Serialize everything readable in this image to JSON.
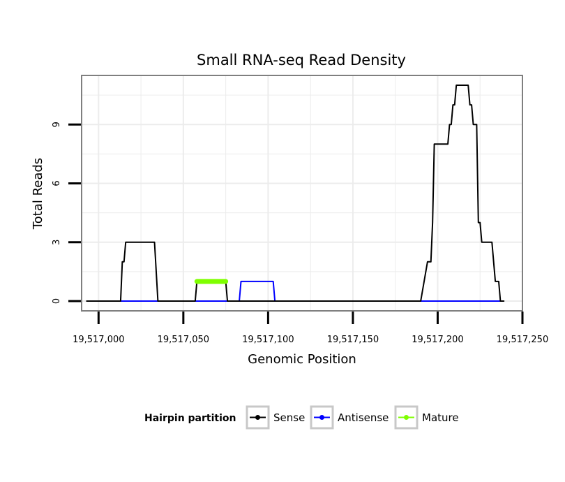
{
  "chart_data": {
    "type": "line",
    "title": "Small RNA-seq Read Density",
    "xlabel": "Genomic Position",
    "ylabel": "Total Reads",
    "xlim": [
      19516990,
      19517250
    ],
    "ylim": [
      -0.5,
      11.5
    ],
    "x_ticks": [
      19517000,
      19517050,
      19517100,
      19517150,
      19517200,
      19517250
    ],
    "x_tick_labels": [
      "19,517,000",
      "19,517,050",
      "19,517,100",
      "19,517,150",
      "19,517,200",
      "19,517,250"
    ],
    "y_ticks": [
      0,
      3,
      6,
      9
    ],
    "y_tick_labels": [
      "0",
      "3",
      "6",
      "9"
    ],
    "grid": true,
    "legend": {
      "position": "bottom",
      "title": "Hairpin partition",
      "entries": [
        "Sense",
        "Antisense",
        "Mature"
      ]
    },
    "series": [
      {
        "name": "Sense",
        "color": "#000000",
        "line_width": 2,
        "x": [
          19516993,
          19517013,
          19517014,
          19517015,
          19517016,
          19517017,
          19517033,
          19517035,
          19517057,
          19517058,
          19517075,
          19517076,
          19517190,
          19517192,
          19517194,
          19517196,
          19517197,
          19517198,
          19517199,
          19517200,
          19517206,
          19517207,
          19517208,
          19517209,
          19517210,
          19517211,
          19517212,
          19517213,
          19517218,
          19517219,
          19517220,
          19517221,
          19517223,
          19517224,
          19517225,
          19517226,
          19517232,
          19517233,
          19517234,
          19517236,
          19517237,
          19517239
        ],
        "values": [
          0,
          0,
          2,
          2,
          3,
          3,
          3,
          0,
          0,
          1,
          1,
          0,
          0,
          1,
          2,
          2,
          4,
          8,
          8,
          8,
          8,
          9,
          9,
          10,
          10,
          11,
          11,
          11,
          11,
          10,
          10,
          9,
          9,
          4,
          4,
          3,
          3,
          2,
          1,
          1,
          0,
          0
        ]
      },
      {
        "name": "Antisense",
        "color": "#0000ff",
        "line_width": 2,
        "x": [
          19517013,
          19517083,
          19517084,
          19517103,
          19517104,
          19517237
        ],
        "values": [
          0,
          0,
          1,
          1,
          0,
          0
        ]
      },
      {
        "name": "Mature",
        "color": "#7fff00",
        "line_width": 7,
        "x": [
          19517058,
          19517075
        ],
        "values": [
          1,
          1
        ]
      }
    ]
  }
}
